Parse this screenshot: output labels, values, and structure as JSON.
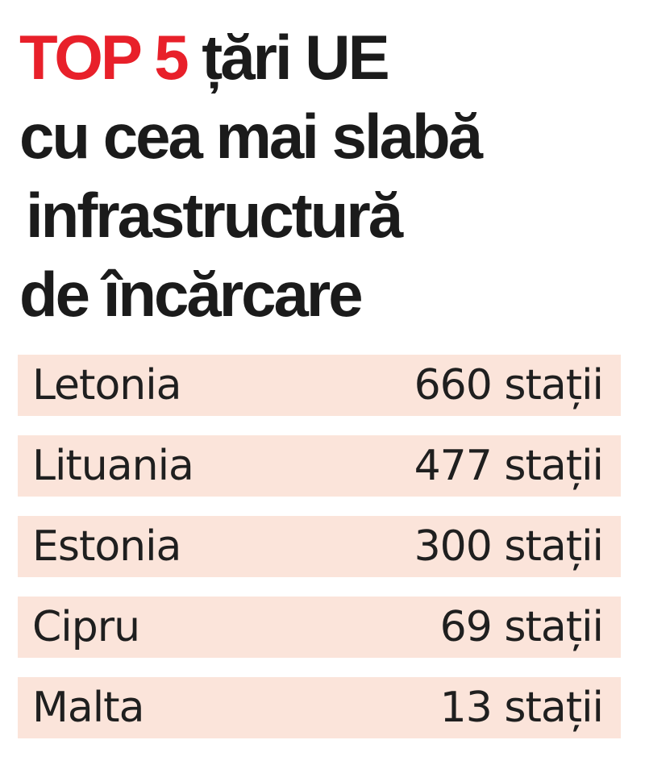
{
  "title": {
    "accent": "TOP 5",
    "line1_rest": "țări UE",
    "line2": "cu cea mai slabă",
    "line3": "infrastructură",
    "line4": "de încărcare"
  },
  "colors": {
    "accent": "#e8202a",
    "row_background": "#fbe4da",
    "text": "#1b1b1b"
  },
  "chart_data": {
    "type": "table",
    "columns": [
      "",
      ""
    ],
    "rows": [
      {
        "country": "Letonia",
        "stations": 660,
        "label": "660 stații"
      },
      {
        "country": "Lituania",
        "stations": 477,
        "label": "477 stații"
      },
      {
        "country": "Estonia",
        "stations": 300,
        "label": "300 stații"
      },
      {
        "country": "Cipru",
        "stations": 69,
        "label": "69 stații"
      },
      {
        "country": "Malta",
        "stations": 13,
        "label": "13 stații"
      }
    ]
  }
}
